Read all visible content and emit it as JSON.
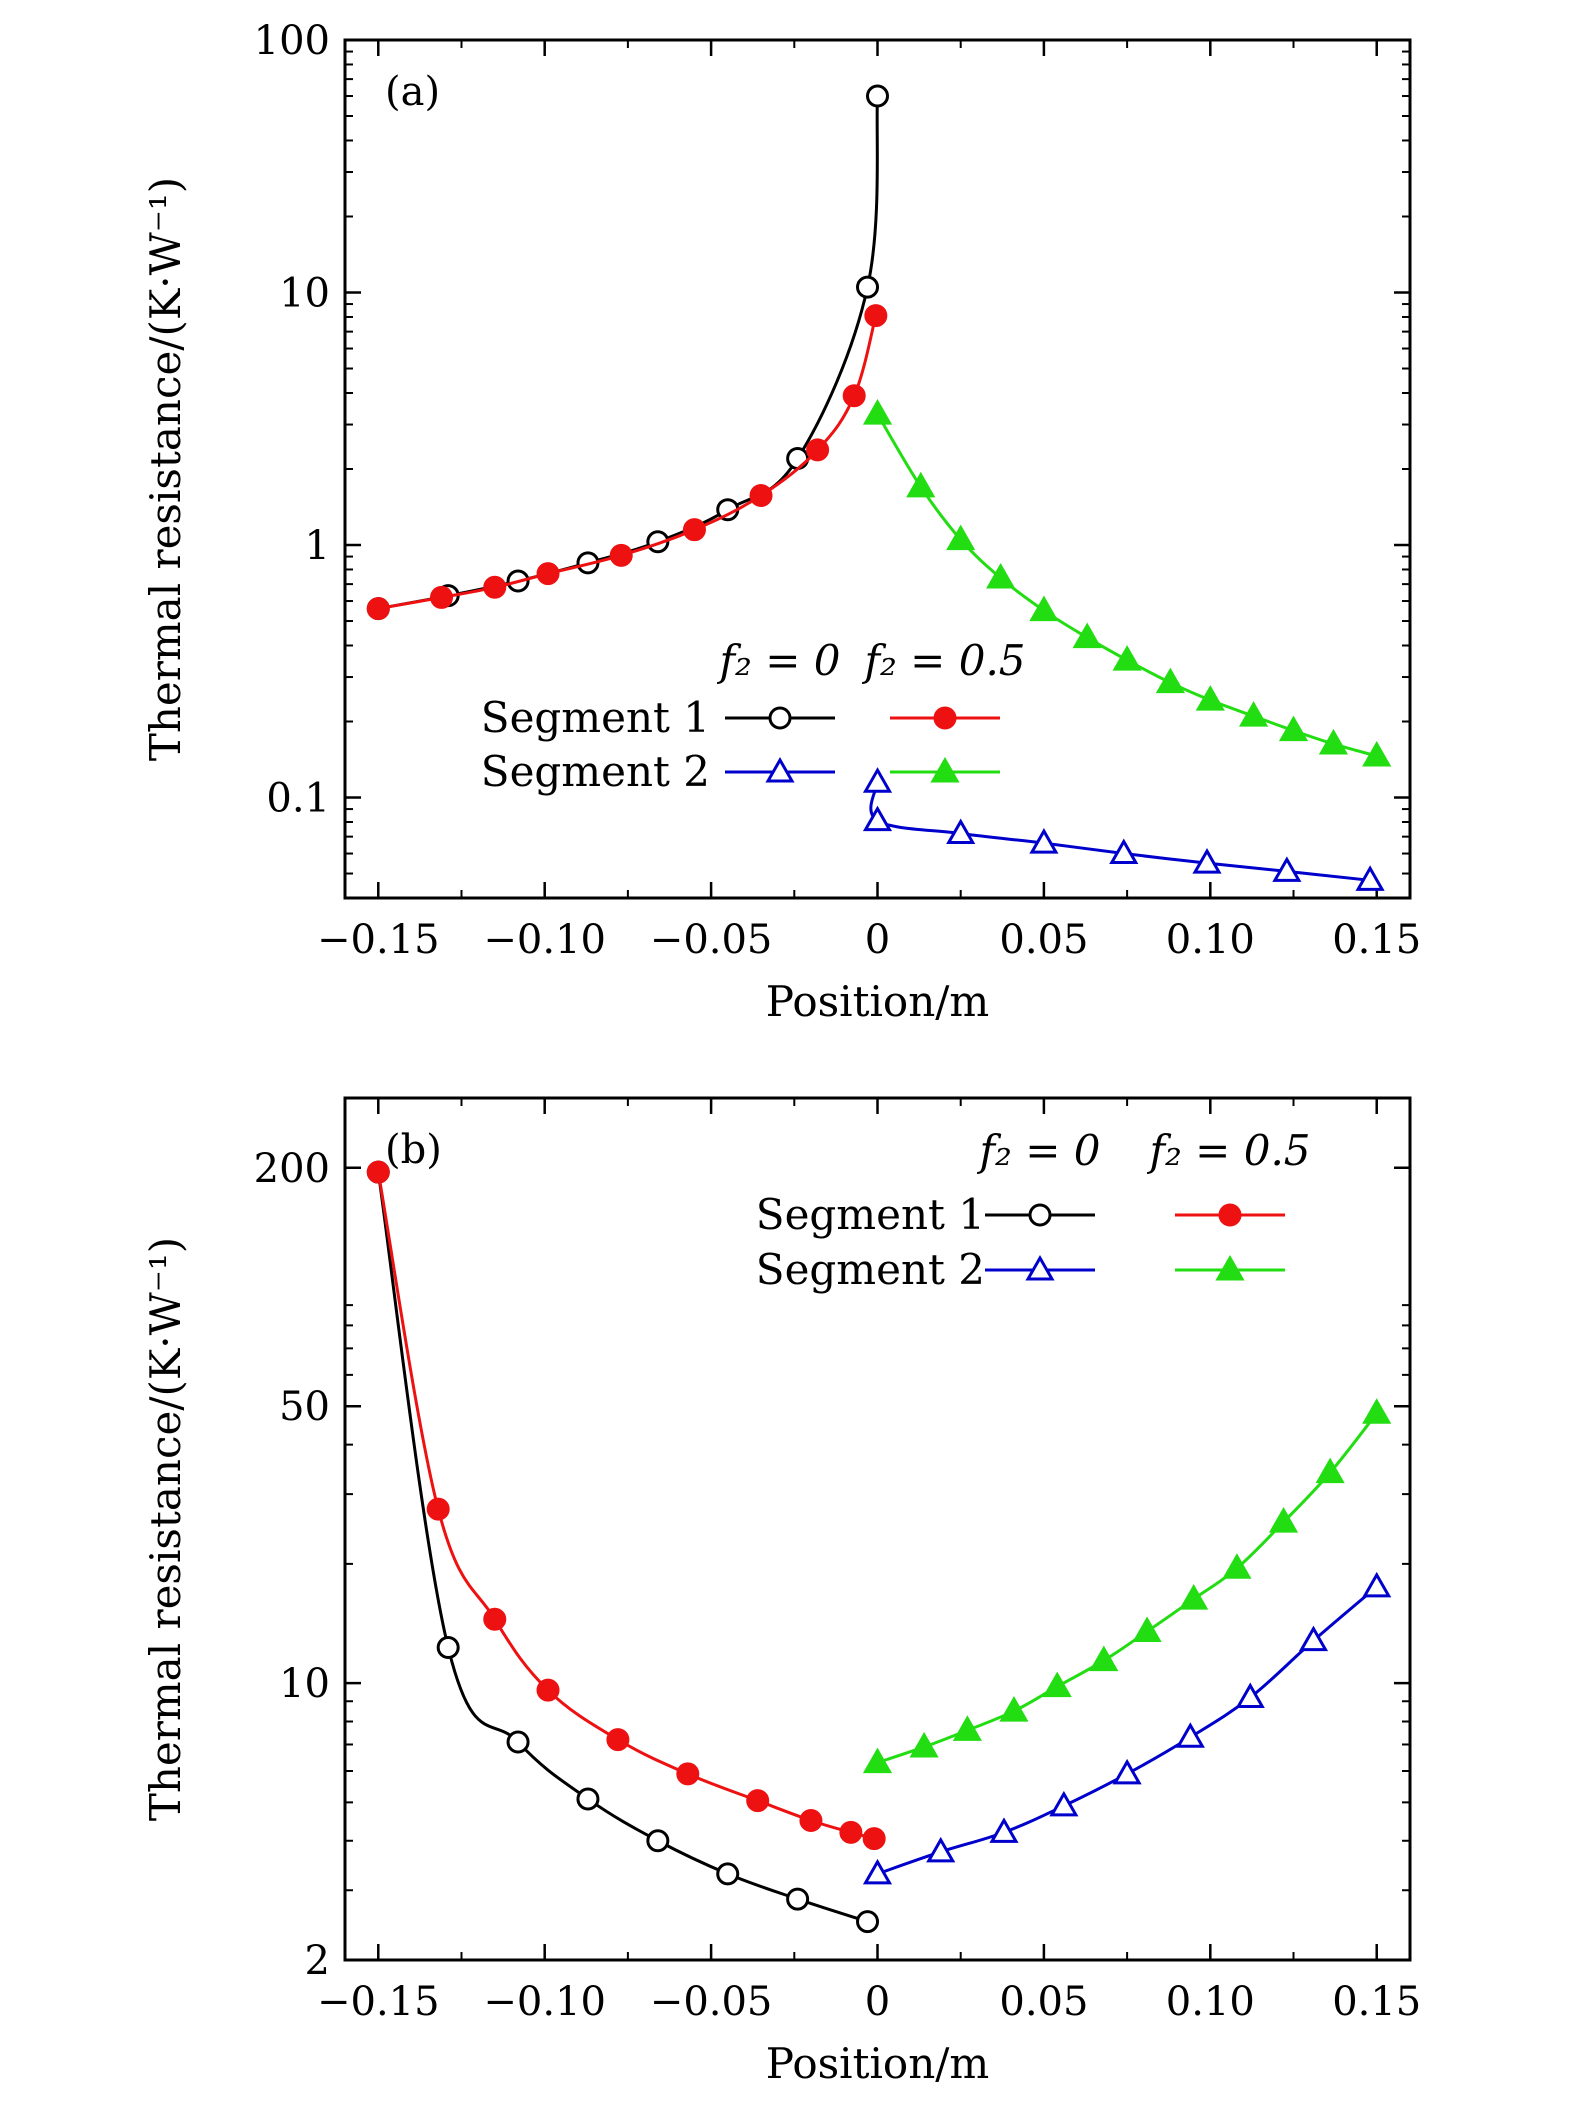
{
  "chart_data": [
    {
      "type": "line",
      "panel_label": "(a)",
      "xlabel": "Position/m",
      "ylabel": "Thermal resistance/(K·W⁻¹)",
      "xlim": [
        -0.16,
        0.16
      ],
      "ylim": [
        0.04,
        100
      ],
      "yscale": "log",
      "x_ticks": [
        -0.15,
        -0.1,
        -0.05,
        0,
        0.05,
        0.1,
        0.15
      ],
      "x_tick_labels": [
        "−0.15",
        "−0.10",
        "−0.05",
        "0",
        "0.05",
        "0.10",
        "0.15"
      ],
      "y_ticks": [
        0.1,
        1,
        10,
        100
      ],
      "y_tick_labels": [
        "0.1",
        "1",
        "10",
        "100"
      ],
      "legend": {
        "position": "center-right",
        "column_headers": [
          "f₂ = 0",
          "f₂ = 0.5"
        ],
        "row_labels": [
          "Segment 1",
          "Segment 2"
        ]
      },
      "series": [
        {
          "color": "#000000",
          "marker": "circle-open",
          "column": 0,
          "row": 0,
          "x": [
            -0.15,
            -0.129,
            -0.108,
            -0.087,
            -0.066,
            -0.045,
            -0.024,
            -0.003,
            0
          ],
          "y": [
            0.56,
            0.63,
            0.72,
            0.85,
            1.03,
            1.38,
            2.2,
            10.5,
            60
          ]
        },
        {
          "color": "#ee1111",
          "marker": "circle-filled",
          "column": 1,
          "row": 0,
          "x": [
            -0.15,
            -0.131,
            -0.115,
            -0.099,
            -0.077,
            -0.055,
            -0.035,
            -0.018,
            -0.007,
            -0.0005
          ],
          "y": [
            0.56,
            0.62,
            0.68,
            0.77,
            0.91,
            1.15,
            1.57,
            2.38,
            3.9,
            8.1
          ]
        },
        {
          "color": "#0000cc",
          "marker": "triangle-open",
          "column": 0,
          "row": 1,
          "x": [
            0,
            0,
            0.025,
            0.05,
            0.074,
            0.099,
            0.123,
            0.148
          ],
          "y": [
            0.115,
            0.081,
            0.072,
            0.066,
            0.06,
            0.055,
            0.051,
            0.047
          ]
        },
        {
          "color": "#22dd11",
          "marker": "triangle-filled",
          "column": 1,
          "row": 1,
          "x": [
            0,
            0.013,
            0.025,
            0.037,
            0.05,
            0.063,
            0.075,
            0.088,
            0.1,
            0.113,
            0.125,
            0.137,
            0.15
          ],
          "y": [
            3.3,
            1.7,
            1.05,
            0.74,
            0.55,
            0.43,
            0.35,
            0.285,
            0.243,
            0.21,
            0.184,
            0.163,
            0.146
          ]
        }
      ]
    },
    {
      "type": "line",
      "panel_label": "(b)",
      "xlabel": "Position/m",
      "ylabel": "Thermal resistance/(K·W⁻¹)",
      "xlim": [
        -0.16,
        0.16
      ],
      "ylim": [
        2,
        300
      ],
      "yscale": "log",
      "x_ticks": [
        -0.15,
        -0.1,
        -0.05,
        0,
        0.05,
        0.1,
        0.15
      ],
      "x_tick_labels": [
        "−0.15",
        "−0.10",
        "−0.05",
        "0",
        "0.05",
        "0.10",
        "0.15"
      ],
      "y_ticks": [
        2,
        10,
        50,
        200
      ],
      "y_tick_labels": [
        "2",
        "10",
        "50",
        "200"
      ],
      "legend": {
        "position": "top-right",
        "column_headers": [
          "f₂ = 0",
          "f₂ = 0.5"
        ],
        "row_labels": [
          "Segment 1",
          "Segment 2"
        ]
      },
      "series": [
        {
          "color": "#000000",
          "marker": "circle-open",
          "column": 0,
          "row": 0,
          "x": [
            -0.15,
            -0.129,
            -0.108,
            -0.087,
            -0.066,
            -0.045,
            -0.024,
            -0.003
          ],
          "y": [
            195,
            12.3,
            7.1,
            5.1,
            4.0,
            3.3,
            2.85,
            2.5
          ]
        },
        {
          "color": "#ee1111",
          "marker": "circle-filled",
          "column": 1,
          "row": 0,
          "x": [
            -0.15,
            -0.132,
            -0.115,
            -0.099,
            -0.078,
            -0.057,
            -0.036,
            -0.02,
            -0.008,
            -0.001
          ],
          "y": [
            195,
            27.5,
            14.5,
            9.6,
            7.2,
            5.9,
            5.05,
            4.5,
            4.2,
            4.05
          ]
        },
        {
          "color": "#0000cc",
          "marker": "triangle-open",
          "column": 0,
          "row": 1,
          "x": [
            0,
            0.019,
            0.038,
            0.056,
            0.075,
            0.094,
            0.112,
            0.131,
            0.15
          ],
          "y": [
            3.3,
            3.75,
            4.2,
            4.9,
            5.9,
            7.3,
            9.2,
            12.8,
            17.5
          ]
        },
        {
          "color": "#22dd11",
          "marker": "triangle-filled",
          "column": 1,
          "row": 1,
          "x": [
            0,
            0.014,
            0.027,
            0.041,
            0.054,
            0.068,
            0.081,
            0.095,
            0.108,
            0.122,
            0.136,
            0.15
          ],
          "y": [
            6.3,
            6.9,
            7.6,
            8.5,
            9.8,
            11.4,
            13.5,
            16.3,
            19.5,
            25.5,
            34.0,
            48.0
          ]
        }
      ]
    }
  ]
}
